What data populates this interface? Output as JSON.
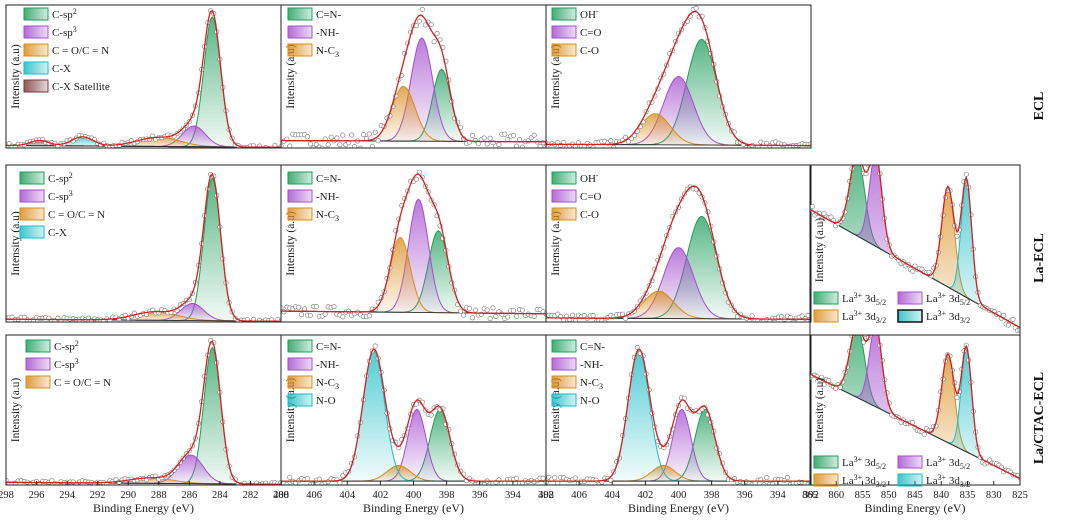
{
  "colors": {
    "green": "#1f9e5c",
    "purple": "#a64fcf",
    "orange": "#d98c1a",
    "cyan": "#19bcc4",
    "brown": "#7a3a3a",
    "envelope": "#d62020",
    "black": "#111111"
  },
  "row_labels": [
    "ECL",
    "La-ECL",
    "La/CTAC-ECL"
  ],
  "common": {
    "ylabel": "Intensity (a.u)",
    "xlabel": "Binding Energy (eV)"
  },
  "chart_data": [
    {
      "id": "c1s-ecl",
      "type": "line",
      "xlim": [
        298,
        280
      ],
      "ylim": [
        0,
        1.1
      ],
      "xlabel": "Binding Energy (eV)",
      "ylabel": "Intensity (a.u)",
      "xticks": [],
      "bg": [
        0.02,
        0.005
      ],
      "series": [
        {
          "name": "C-sp2",
          "label": "C-sp",
          "sup": "2",
          "color": "green",
          "center": 284.5,
          "width": 0.55,
          "height": 1.0
        },
        {
          "name": "C-sp3",
          "label": "C-sp",
          "sup": "3",
          "color": "purple",
          "center": 285.7,
          "width": 0.75,
          "height": 0.16
        },
        {
          "name": "C = O/C = N",
          "label": "C = O/C = N",
          "color": "orange",
          "center": 288.0,
          "width": 1.4,
          "height": 0.07
        },
        {
          "name": "C-X",
          "label": "C-X",
          "color": "cyan",
          "center": 293.0,
          "width": 0.7,
          "height": 0.07
        },
        {
          "name": "C-X Satellite",
          "label": "C-X Satellite",
          "color": "brown",
          "center": 295.8,
          "width": 0.6,
          "height": 0.04
        }
      ]
    },
    {
      "id": "n1s-ecl",
      "type": "line",
      "xlim": [
        408,
        392
      ],
      "ylim": [
        0,
        1.15
      ],
      "xlabel": "Binding Energy (eV)",
      "ylabel": "Intensity (a.u)",
      "xticks": [],
      "bg": [
        0.06,
        0.05
      ],
      "noise": 0.06,
      "series": [
        {
          "name": "C=N-",
          "label": "C=N-",
          "color": "green",
          "center": 398.3,
          "width": 0.55,
          "height": 0.58
        },
        {
          "name": "-NH-",
          "label": "-NH-",
          "color": "purple",
          "center": 399.5,
          "width": 0.65,
          "height": 0.83
        },
        {
          "name": "N-C3",
          "label": "N-C",
          "sub": "3",
          "color": "orange",
          "center": 400.6,
          "width": 0.7,
          "height": 0.44
        }
      ]
    },
    {
      "id": "o1s-ecl",
      "type": "line",
      "xlim": [
        408,
        392
      ],
      "ylim": [
        0,
        1.15
      ],
      "xlabel": "Binding Energy (eV)",
      "ylabel": "Intensity (a.u)",
      "xticks": [],
      "bg": [
        0.03,
        0.02
      ],
      "noise": 0.03,
      "series": [
        {
          "name": "OH-",
          "label": "OH",
          "sup": "-",
          "color": "green",
          "center": 398.6,
          "width": 0.9,
          "height": 0.85
        },
        {
          "name": "C=O",
          "label": "C=O",
          "color": "purple",
          "center": 400.0,
          "width": 0.9,
          "height": 0.55
        },
        {
          "name": "C-O",
          "label": "C-O",
          "color": "orange",
          "center": 401.4,
          "width": 0.9,
          "height": 0.25
        }
      ]
    },
    {
      "id": "c1s-la-ecl",
      "type": "line",
      "xlim": [
        298,
        280
      ],
      "ylim": [
        0,
        1.1
      ],
      "xlabel": "Binding Energy (eV)",
      "ylabel": "Intensity (a.u)",
      "xticks": [],
      "bg": [
        0.02,
        0.005
      ],
      "series": [
        {
          "name": "C-sp2",
          "label": "C-sp",
          "sup": "2",
          "color": "green",
          "center": 284.5,
          "width": 0.55,
          "height": 1.0
        },
        {
          "name": "C-sp3",
          "label": "C-sp",
          "sup": "3",
          "color": "purple",
          "center": 285.8,
          "width": 0.75,
          "height": 0.12
        },
        {
          "name": "C = O/C = N",
          "label": "C = O/C = N",
          "color": "orange",
          "center": 288.2,
          "width": 1.4,
          "height": 0.06
        },
        {
          "name": "C-X",
          "label": "C-X",
          "color": "cyan",
          "center": 293.0,
          "width": 0.7,
          "height": 0.0
        }
      ]
    },
    {
      "id": "n1s-la-ecl",
      "type": "line",
      "xlim": [
        408,
        392
      ],
      "ylim": [
        0,
        1.15
      ],
      "xlabel": "Binding Energy (eV)",
      "ylabel": "Intensity (a.u)",
      "xticks": [],
      "bg": [
        0.08,
        0.06
      ],
      "noise": 0.04,
      "series": [
        {
          "name": "C=N-",
          "label": "C=N-",
          "color": "green",
          "center": 398.5,
          "width": 0.6,
          "height": 0.6
        },
        {
          "name": "-NH-",
          "label": "-NH-",
          "color": "purple",
          "center": 399.7,
          "width": 0.6,
          "height": 0.83
        },
        {
          "name": "N-C3",
          "label": "N-C",
          "sub": "3",
          "color": "orange",
          "center": 400.8,
          "width": 0.6,
          "height": 0.55
        }
      ]
    },
    {
      "id": "o1s-la-ecl",
      "type": "line",
      "xlim": [
        408,
        392
      ],
      "ylim": [
        0,
        1.15
      ],
      "xlabel": "Binding Energy (eV)",
      "ylabel": "Intensity (a.u)",
      "xticks": [],
      "bg": [
        0.03,
        0.02
      ],
      "noise": 0.03,
      "series": [
        {
          "name": "OH-",
          "label": "OH",
          "sup": "-",
          "color": "green",
          "center": 398.6,
          "width": 0.9,
          "height": 0.75
        },
        {
          "name": "C=O",
          "label": "C=O",
          "color": "purple",
          "center": 400.0,
          "width": 0.9,
          "height": 0.52
        },
        {
          "name": "C-O",
          "label": "C-O",
          "color": "orange",
          "center": 401.2,
          "width": 0.9,
          "height": 0.2
        }
      ]
    },
    {
      "id": "c1s-la-ctac-ecl",
      "type": "line",
      "xlim": [
        298,
        280
      ],
      "ylim": [
        0,
        1.1
      ],
      "xlabel": "Binding Energy (eV)",
      "ylabel": "Intensity (a.u)",
      "xticks": [
        298,
        296,
        294,
        292,
        290,
        288,
        286,
        284,
        282,
        280
      ],
      "bg": [
        0.02,
        0.005
      ],
      "series": [
        {
          "name": "C-sp2",
          "label": "C-sp",
          "sup": "2",
          "color": "green",
          "center": 284.5,
          "width": 0.55,
          "height": 1.0
        },
        {
          "name": "C-sp3",
          "label": "C-sp",
          "sup": "3",
          "color": "purple",
          "center": 285.9,
          "width": 0.8,
          "height": 0.21
        },
        {
          "name": "C = O/C = N",
          "label": "C = O/C = N",
          "color": "orange",
          "center": 288.5,
          "width": 1.4,
          "height": 0.04
        }
      ]
    },
    {
      "id": "n1s-la-ctac-ecl",
      "type": "line",
      "xlim": [
        408,
        392
      ],
      "ylim": [
        0,
        1.15
      ],
      "xlabel": "Binding Energy (eV)",
      "ylabel": "Intensity (a.u)",
      "xticks": [
        408,
        406,
        404,
        402,
        400,
        398,
        396,
        394,
        392
      ],
      "bg": [
        0.03,
        0.03
      ],
      "noise": 0.03,
      "series": [
        {
          "name": "C=N-",
          "label": "C=N-",
          "color": "green",
          "center": 398.4,
          "width": 0.6,
          "height": 0.55
        },
        {
          "name": "-NH-",
          "label": "-NH-",
          "color": "purple",
          "center": 399.8,
          "width": 0.55,
          "height": 0.55
        },
        {
          "name": "N-C3",
          "label": "N-C",
          "sub": "3",
          "color": "orange",
          "center": 400.9,
          "width": 0.7,
          "height": 0.12
        },
        {
          "name": "N-O",
          "label": "N-O",
          "color": "cyan",
          "center": 402.4,
          "width": 0.65,
          "height": 1.0
        }
      ]
    },
    {
      "id": "o1s-la-ctac-ecl",
      "type": "line",
      "xlim": [
        408,
        392
      ],
      "ylim": [
        0,
        1.15
      ],
      "xlabel": "Binding Energy (eV)",
      "ylabel": "Intensity (a.u)",
      "xticks": [
        408,
        406,
        404,
        402,
        400,
        398,
        396,
        394,
        392
      ],
      "bg": [
        0.03,
        0.03
      ],
      "noise": 0.03,
      "series": [
        {
          "name": "C=N-",
          "label": "C=N-",
          "color": "green",
          "center": 398.4,
          "width": 0.6,
          "height": 0.55
        },
        {
          "name": "-NH-",
          "label": "-NH-",
          "color": "purple",
          "center": 399.8,
          "width": 0.55,
          "height": 0.55
        },
        {
          "name": "N-C3",
          "label": "N-C",
          "sub": "3",
          "color": "orange",
          "center": 400.9,
          "width": 0.7,
          "height": 0.12
        },
        {
          "name": "N-O",
          "label": "N-O",
          "color": "cyan",
          "center": 402.4,
          "width": 0.65,
          "height": 1.0
        }
      ]
    },
    {
      "id": "la3d-la-ecl",
      "type": "line",
      "xlim": [
        865,
        825
      ],
      "ylim": [
        0,
        1.15
      ],
      "xlabel": "Binding Energy (eV)",
      "ylabel": "Intensity (a.u)",
      "xticks": [],
      "bg": [
        0.85,
        0.05
      ],
      "bgcolor": "cyan",
      "noise": 0.03,
      "series": [
        {
          "name": "La3+ 3d5/2",
          "label": "La",
          "sup": "3+",
          "after": " 3d",
          "sub": "5/2",
          "color": "green",
          "center": 856.0,
          "width": 1.4,
          "height": 0.55,
          "legend_col": 0
        },
        {
          "name": "La3+ 3d5/2",
          "label": "La",
          "sup": "3+",
          "after": " 3d",
          "sub": "5/2",
          "color": "purple",
          "center": 852.5,
          "width": 1.2,
          "height": 0.62,
          "legend_col": 1
        },
        {
          "name": "La3+ 3d3/2",
          "label": "La",
          "sup": "3+",
          "after": " 3d",
          "sub": "3/2",
          "color": "orange",
          "center": 838.7,
          "width": 1.2,
          "height": 0.68,
          "legend_col": 0
        },
        {
          "name": "La3+ 3d3/2",
          "label": "La",
          "sup": "3+",
          "after": " 3d",
          "sub": "3/2",
          "color": "cyan",
          "center": 835.2,
          "width": 1.0,
          "height": 0.8,
          "legend_col": 1,
          "legend_border": "black"
        }
      ]
    },
    {
      "id": "la3d-la-ctac-ecl",
      "type": "line",
      "xlim": [
        865,
        825
      ],
      "ylim": [
        0,
        1.15
      ],
      "xlabel": "Binding Energy (eV)",
      "ylabel": "Intensity (a.u)",
      "xticks": [
        865,
        860,
        855,
        850,
        845,
        840,
        835,
        830,
        825
      ],
      "bg": [
        0.85,
        0.05
      ],
      "bgcolor": "cyan",
      "noise": 0.03,
      "series": [
        {
          "name": "La3+ 3d5/2",
          "label": "La",
          "sup": "3+",
          "after": " 3d",
          "sub": "5/2",
          "color": "green",
          "center": 856.0,
          "width": 1.4,
          "height": 0.55,
          "legend_col": 0
        },
        {
          "name": "La3+ 3d5/2",
          "label": "La",
          "sup": "3+",
          "after": " 3d",
          "sub": "5/2",
          "color": "purple",
          "center": 852.5,
          "width": 1.2,
          "height": 0.62,
          "legend_col": 1
        },
        {
          "name": "La3+ 3d3/2",
          "label": "La",
          "sup": "3+",
          "after": " 3d",
          "sub": "3/2",
          "color": "orange",
          "center": 838.7,
          "width": 1.2,
          "height": 0.68,
          "legend_col": 0
        },
        {
          "name": "La3+ 3d3/2",
          "label": "La",
          "sup": "3+",
          "after": " 3d",
          "sub": "3/2",
          "color": "cyan",
          "center": 835.2,
          "width": 1.0,
          "height": 0.8,
          "legend_col": 1
        }
      ]
    }
  ]
}
